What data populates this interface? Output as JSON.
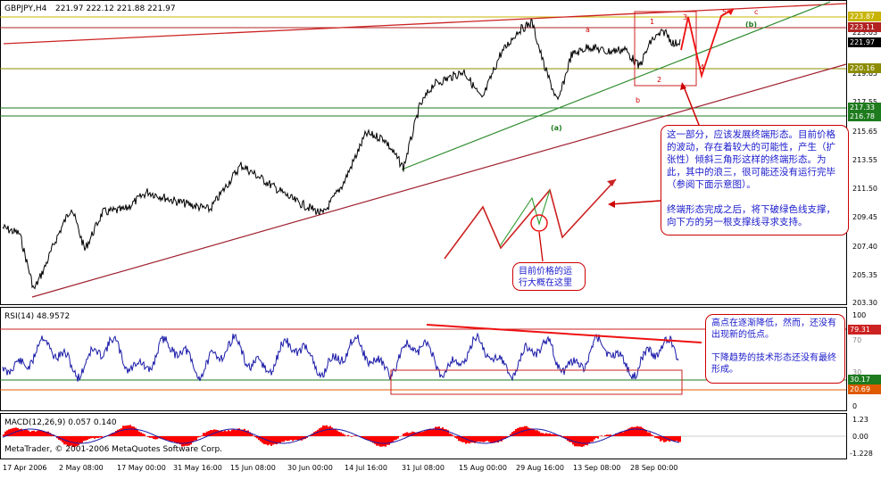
{
  "main_panel": {
    "title": "GBPJPY,H4",
    "ohlc": "221.97 222.12 221.88 221.97",
    "price_labels": [
      "223.03",
      "219.65",
      "217.55",
      "215.65",
      "213.55",
      "211.50",
      "209.45",
      "207.40",
      "205.35",
      "203.30"
    ],
    "level_tags": [
      {
        "text": "223.87",
        "color": "#c8b400"
      },
      {
        "text": "223.11",
        "color": "#b22222"
      },
      {
        "text": "221.97",
        "color": "#000000"
      },
      {
        "text": "220.16",
        "color": "#8c8c00"
      },
      {
        "text": "217.33",
        "color": "#1e7b1e"
      },
      {
        "text": "216.78",
        "color": "#1e7b1e"
      }
    ],
    "wave_labels": {
      "a": "a",
      "b": "b",
      "c": "c",
      "paren_a": "(a)",
      "paren_b": "(b)",
      "w1": "1",
      "w2": "2",
      "w3": "3",
      "w4": "4",
      "w5": "5"
    },
    "note_main": "这一部分，应该发展终端形态。目前价格的波动，存在着较大的可能性，产生（扩张性）倾斜三角形这样的终端形态。为此，其中的浪三，很可能还没有运行完毕（参阅下面示意图）。\n\n终端形态完成之后，将下破绿色线支撑，向下方的另一根支撑线寻求支持。",
    "note_current": "目前价格的运行大概在这里"
  },
  "rsi_panel": {
    "title": "RSI(14) 48.9572",
    "scale_labels": [
      "100",
      "70",
      "30",
      "0"
    ],
    "level_tags": [
      {
        "text": "79.31",
        "color": "#cc2222"
      },
      {
        "text": "30.17",
        "color": "#1e7b1e"
      },
      {
        "text": "20.69",
        "color": "#e05a00"
      }
    ],
    "note": "高点在逐渐降低，然而，还没有出现新的低点。\n\n下降趋势的技术形态还没有最终形成。"
  },
  "macd_panel": {
    "title": "MACD(12,26,9) 0.057 0.140",
    "scale_labels": [
      "1.23",
      "0.00",
      "-1.228"
    ],
    "copyright": "MetaTrader, © 2001-2006 MetaQuotes Software Corp."
  },
  "time_axis": [
    "17 Apr 2006",
    "2 May 08:00",
    "17 May 00:00",
    "31 May 16:00",
    "15 Jun 08:00",
    "30 Jun 00:00",
    "14 Jul 16:00",
    "31 Jul 08:00",
    "15 Aug 00:00",
    "29 Aug 16:00",
    "13 Sep 08:00",
    "28 Sep 00:00"
  ],
  "colors": {
    "price": "#000000",
    "rsi": "#1a1aa8",
    "macd_hist": "#ff0000",
    "macd_signal": "#1a1aa8",
    "trend_red": "#b22222",
    "trend_green": "#2e8b2e",
    "annot_red": "#cc0000"
  }
}
